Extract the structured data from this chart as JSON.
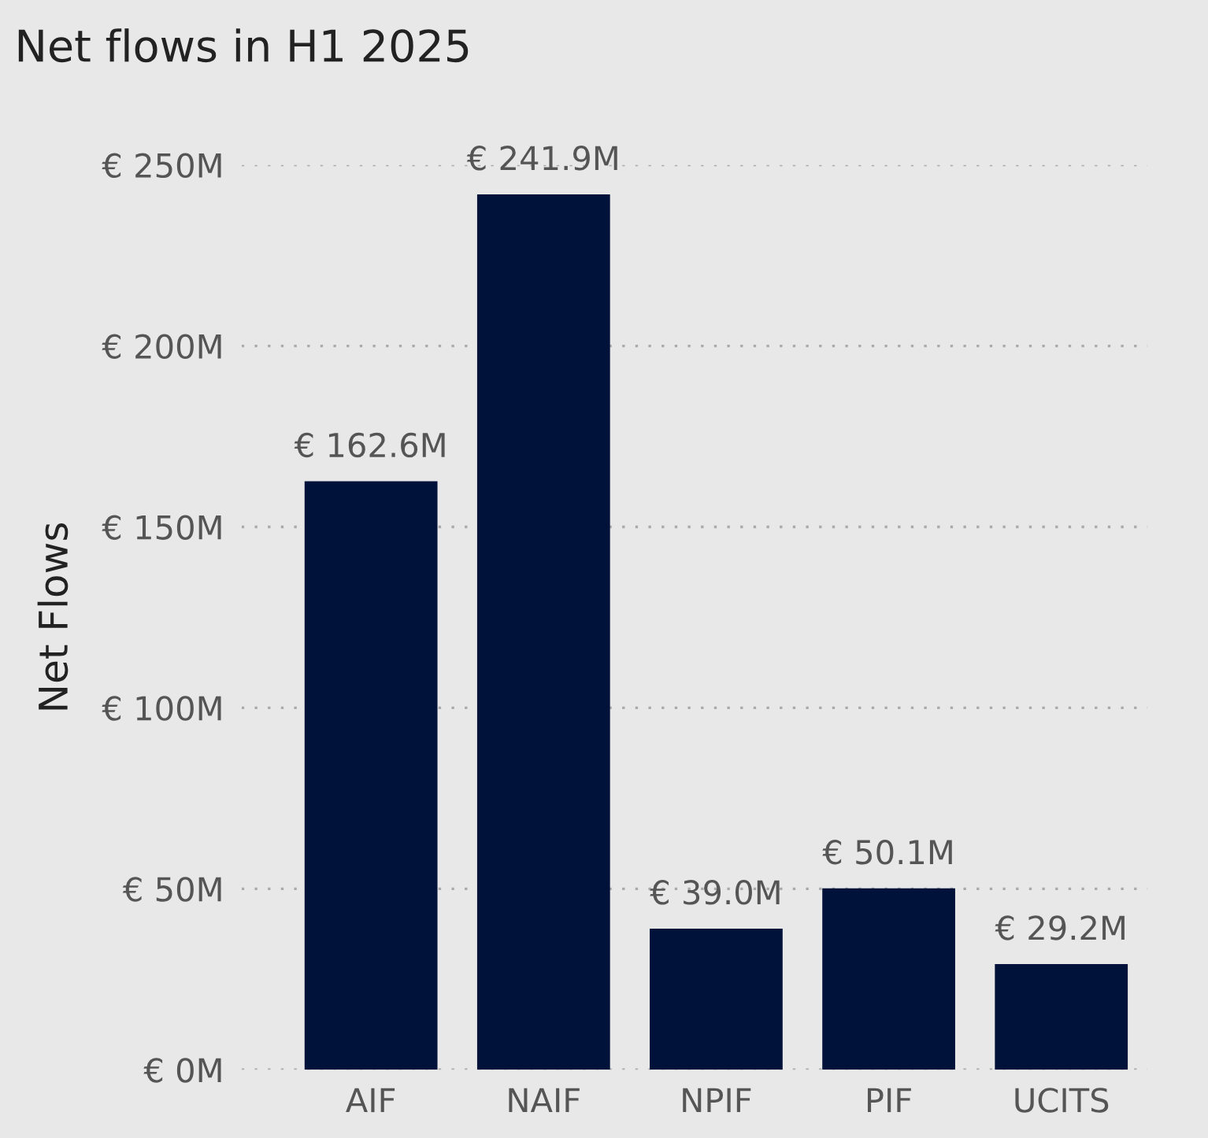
{
  "chart_data": {
    "type": "bar",
    "title": "Net flows in H1 2025",
    "ylabel": "Net Flows",
    "categories": [
      "AIF",
      "NAIF",
      "NPIF",
      "PIF",
      "UCITS"
    ],
    "values": [
      162.6,
      241.9,
      39.0,
      50.1,
      29.2
    ],
    "value_labels": [
      "€ 162.6M",
      "€ 241.9M",
      "€ 39.0M",
      "€ 50.1M",
      "€ 29.2M"
    ],
    "color": "#00113a",
    "ylim": [
      0,
      250
    ],
    "yticks": [
      {
        "value": 0,
        "label": "€ 0M"
      },
      {
        "value": 50,
        "label": "€ 50M"
      },
      {
        "value": 100,
        "label": "€ 100M"
      },
      {
        "value": 150,
        "label": "€ 150M"
      },
      {
        "value": 200,
        "label": "€ 200M"
      },
      {
        "value": 250,
        "label": "€ 250M"
      }
    ],
    "grid": "y"
  }
}
